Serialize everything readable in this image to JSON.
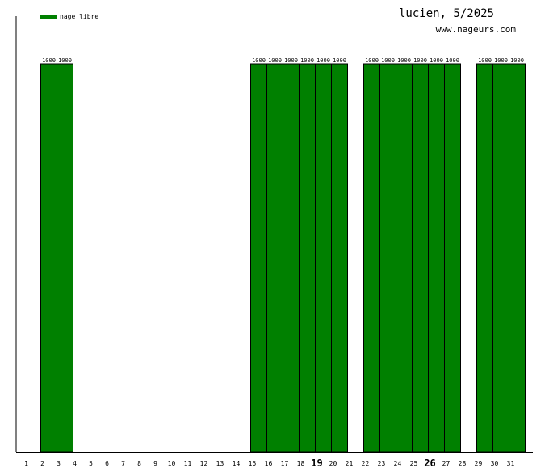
{
  "chart_data": {
    "type": "bar",
    "title": "lucien, 5/2025",
    "subtitle": "www.nageurs.com",
    "legend": [
      {
        "name": "nage libre",
        "color": "#008000"
      }
    ],
    "categories": [
      "1",
      "2",
      "3",
      "4",
      "5",
      "6",
      "7",
      "8",
      "9",
      "10",
      "11",
      "12",
      "13",
      "14",
      "15",
      "16",
      "17",
      "18",
      "19",
      "20",
      "21",
      "22",
      "23",
      "24",
      "25",
      "26",
      "27",
      "28",
      "29",
      "30",
      "31"
    ],
    "emphasized_categories": [
      "19",
      "26"
    ],
    "series": [
      {
        "name": "nage libre",
        "color": "#008000",
        "values": [
          0,
          1000,
          1000,
          0,
          0,
          0,
          0,
          0,
          0,
          0,
          0,
          0,
          0,
          0,
          1000,
          1000,
          1000,
          1000,
          1000,
          1000,
          0,
          1000,
          1000,
          1000,
          1000,
          1000,
          1000,
          0,
          1000,
          1000,
          1000
        ]
      }
    ],
    "ylim": [
      0,
      1000
    ],
    "grid": false,
    "legend_position": "top-left"
  }
}
